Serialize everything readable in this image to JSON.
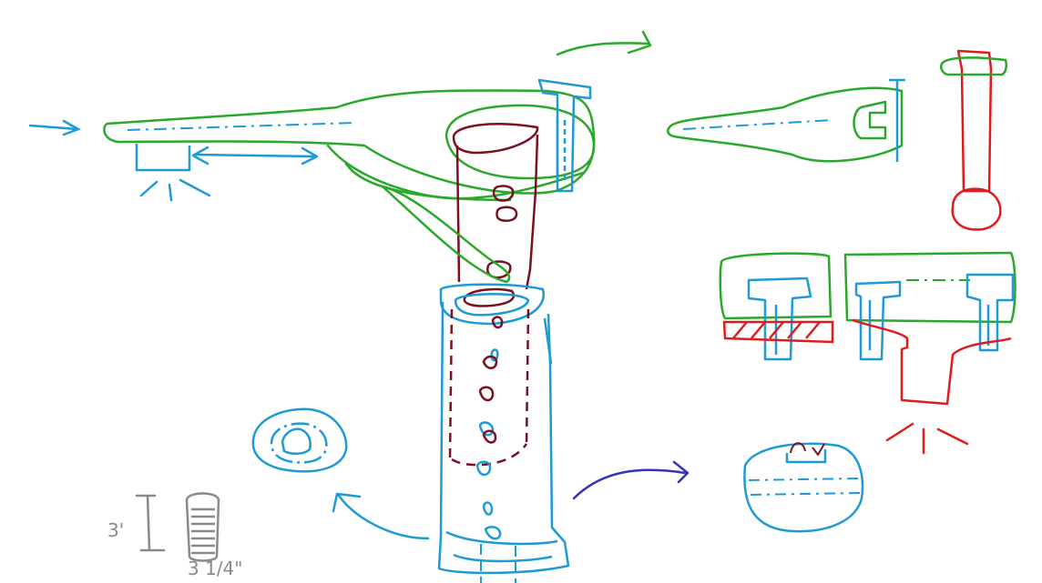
{
  "labels": {
    "height_label": "3'",
    "diameter_label": "3 1/4\""
  },
  "colors": {
    "blue": "#1e9ad6",
    "green": "#2aa82a",
    "maroon": "#7a1020",
    "red": "#e01b1b",
    "navy": "#3535b5",
    "gray": "#8a8a8a",
    "background": "#ffffff"
  }
}
